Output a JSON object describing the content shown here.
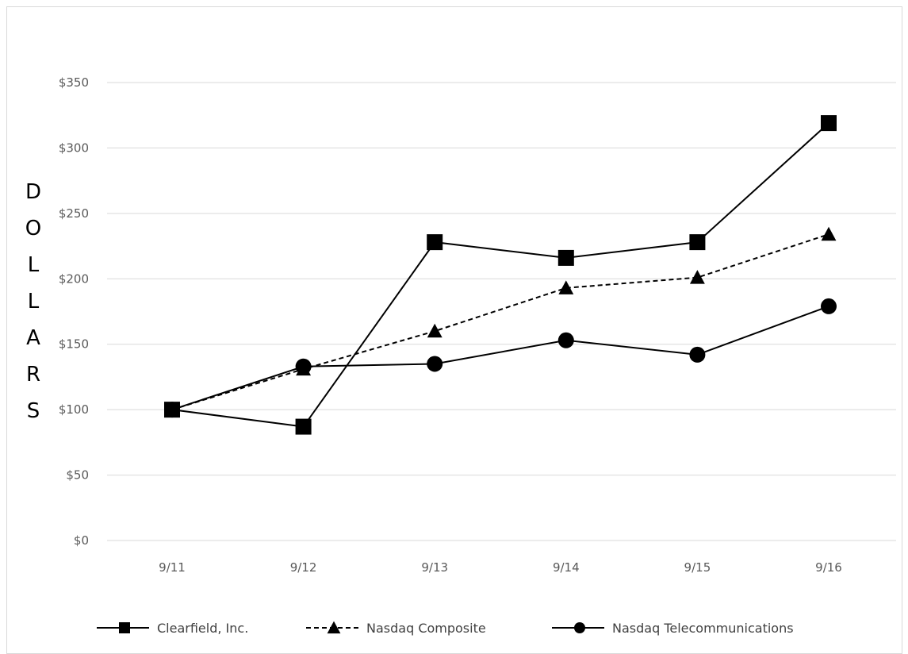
{
  "chart_data": {
    "type": "line",
    "title": "",
    "xlabel": "",
    "ylabel": "DOLLARS",
    "categories": [
      "9/11",
      "9/12",
      "9/13",
      "9/14",
      "9/15",
      "9/16"
    ],
    "yticks": [
      "$0",
      "$50",
      "$100",
      "$150",
      "$200",
      "$250",
      "$300",
      "$350"
    ],
    "ylim": [
      0,
      350
    ],
    "grid": true,
    "legend_position": "bottom",
    "series": [
      {
        "name": "Clearfield, Inc.",
        "values": [
          100,
          87,
          228,
          216,
          228,
          319
        ],
        "marker": "square",
        "dash": "solid"
      },
      {
        "name": "Nasdaq Composite",
        "values": [
          100,
          131,
          160,
          193,
          201,
          234
        ],
        "marker": "triangle",
        "dash": "dashed"
      },
      {
        "name": "Nasdaq Telecommunications",
        "values": [
          100,
          133,
          135,
          153,
          142,
          179
        ],
        "marker": "circle",
        "dash": "solid"
      }
    ]
  },
  "colors": {
    "line": "#000000",
    "grid": "#d9d9d9",
    "tick_text": "#595959"
  }
}
